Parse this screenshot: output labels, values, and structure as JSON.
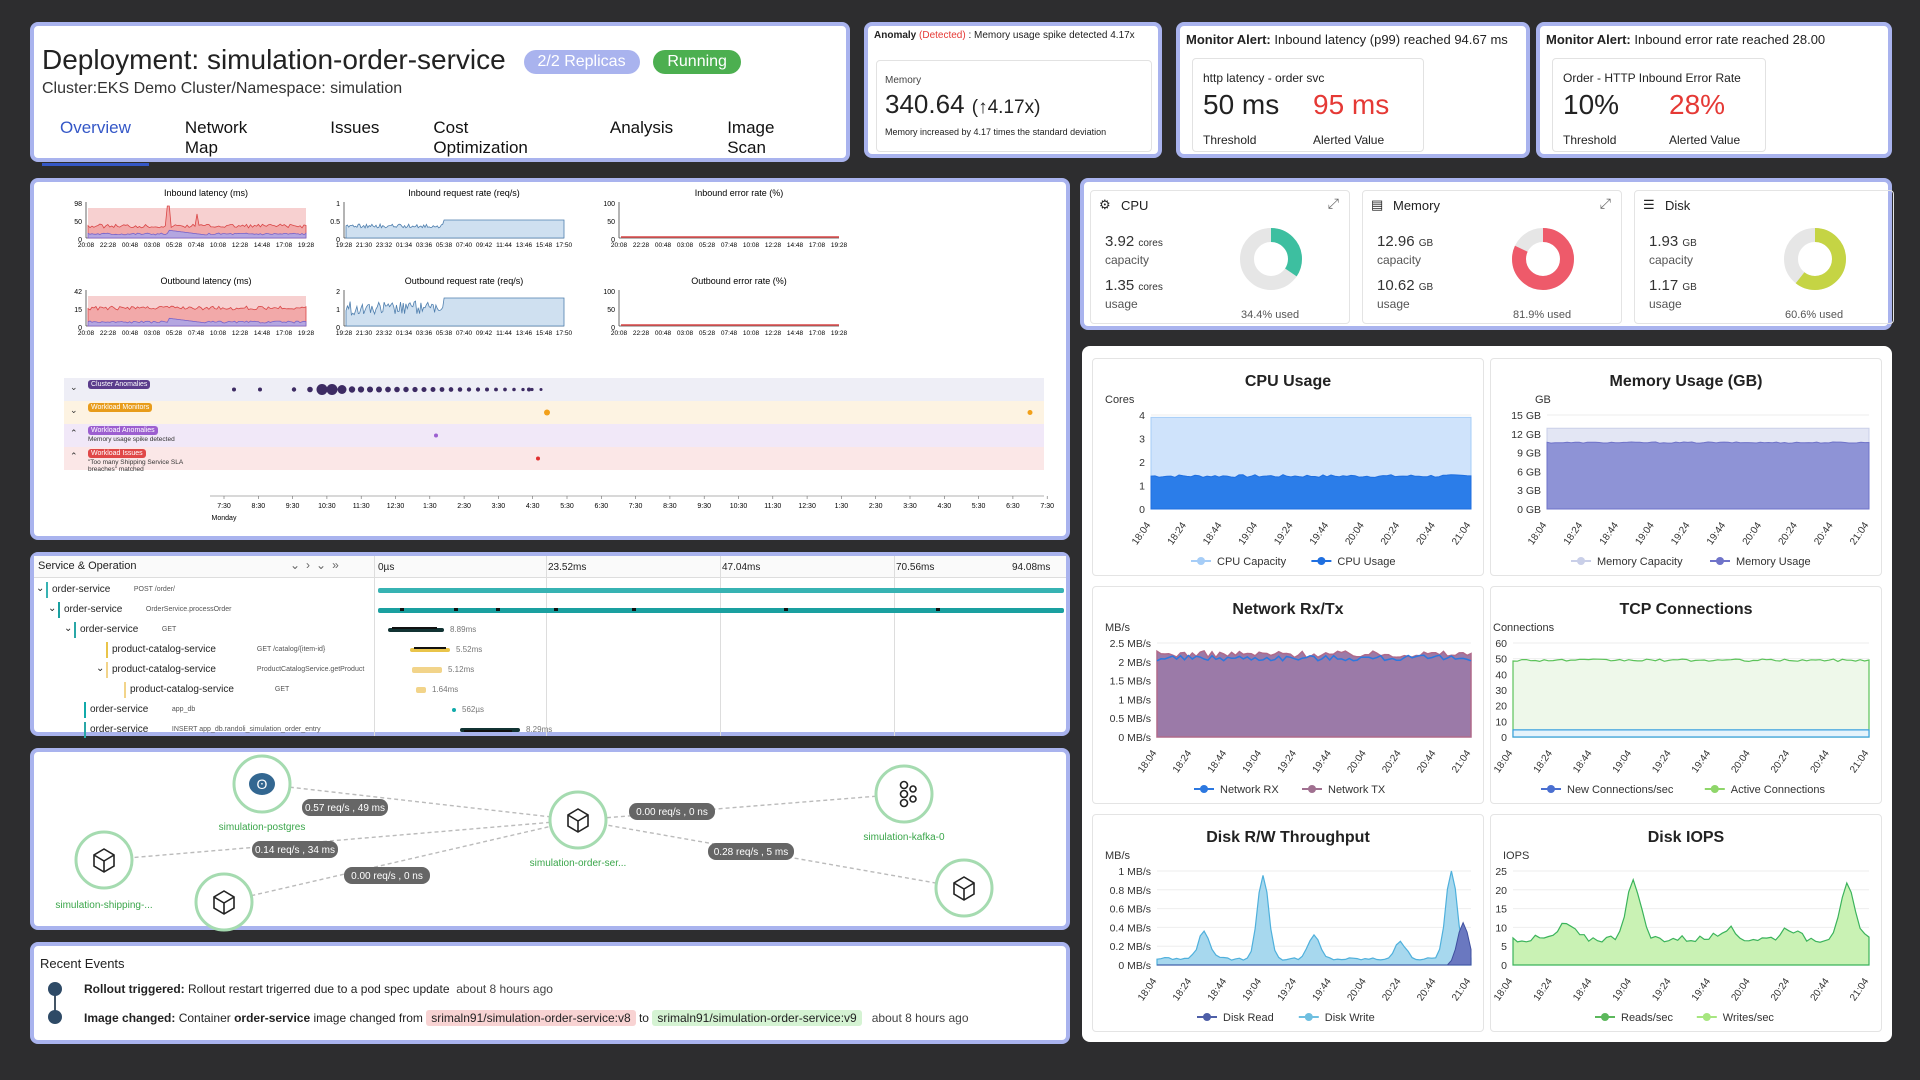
{
  "header": {
    "title": "Deployment: simulation-order-service",
    "replicas": "2/2 Replicas",
    "status": "Running",
    "subtitle": "Cluster:EKS Demo Cluster/Namespace: simulation",
    "tabs": [
      "Overview",
      "Network Map",
      "Issues",
      "Cost Optimization",
      "Analysis",
      "Image Scan"
    ]
  },
  "anomaly": {
    "label": "Anomaly",
    "detected": "(Detected)",
    "msg": ": Memory usage spike detected 4.17x",
    "metric": "Memory",
    "value": "340.64",
    "mult": "(↑4.17x)",
    "note": "Memory increased by 4.17 times the standard deviation"
  },
  "alert1": {
    "label": "Monitor Alert:",
    "msg": "Inbound latency (p99) reached 94.67 ms",
    "name": "http latency - order svc",
    "threshold": "50 ms",
    "alerted": "95 ms",
    "threshold_label": "Threshold",
    "alerted_label": "Alerted Value"
  },
  "alert2": {
    "label": "Monitor Alert:",
    "msg": "Inbound error rate reached 28.00",
    "name": "Order - HTTP Inbound Error Rate",
    "threshold": "10%",
    "alerted": "28%",
    "threshold_label": "Threshold",
    "alerted_label": "Alerted Value"
  },
  "metrics": {
    "titles": [
      "Inbound latency (ms)",
      "Inbound request rate (req/s)",
      "Inbound error rate (%)",
      "Outbound latency (ms)",
      "Outbound request rate (req/s)",
      "Outbound error rate (%)"
    ],
    "xticks": [
      "20:08",
      "22:28",
      "00:48",
      "03:08",
      "05:28",
      "07:48",
      "10:08",
      "12:28",
      "14:48",
      "17:08",
      "19:28"
    ],
    "xticks2": [
      "19:28",
      "21:30",
      "23:32",
      "01:34",
      "03:36",
      "05:38",
      "07:40",
      "09:42",
      "11:44",
      "13:46",
      "15:48",
      "17:50"
    ],
    "y_in_lat": [
      "98",
      "50",
      "0"
    ],
    "y_in_req": [
      "1",
      "0.5",
      "0"
    ],
    "y_err": [
      "100",
      "50",
      "0"
    ],
    "y_out_lat": [
      "42",
      "15",
      "0"
    ],
    "y_out_req": [
      "2",
      "1",
      "0"
    ]
  },
  "timeline": {
    "rows": [
      {
        "label": "Cluster Anomalies",
        "sub": "",
        "color": "#5b3c8c"
      },
      {
        "label": "Workload Monitors",
        "sub": "",
        "color": "#e89c1a"
      },
      {
        "label": "Workload Anomalies",
        "sub": "Memory usage spike detected",
        "color": "#9c5fd0"
      },
      {
        "label": "Workload Issues",
        "sub": "\"Too many Shipping Service SLA breaches\" matched",
        "color": "#e04848"
      }
    ],
    "ticks": [
      "7:30",
      "8:30",
      "9:30",
      "10:30",
      "11:30",
      "12:30",
      "1:30",
      "2:30",
      "3:30",
      "4:30",
      "5:30",
      "6:30",
      "7:30",
      "8:30",
      "9:30",
      "10:30",
      "11:30",
      "12:30",
      "1:30",
      "2:30",
      "3:30",
      "4:30",
      "5:30",
      "6:30",
      "7:30"
    ],
    "day": "Monday"
  },
  "resources": [
    {
      "name": "CPU",
      "cap": "3.92",
      "cap_unit": "cores",
      "cap_label": "capacity",
      "use": "1.35",
      "use_unit": "cores",
      "use_label": "usage",
      "pct": "34.4% used",
      "frac": 0.344,
      "color": "#3dbfa0"
    },
    {
      "name": "Memory",
      "cap": "12.96",
      "cap_unit": "GB",
      "cap_label": "capacity",
      "use": "10.62",
      "use_unit": "GB",
      "use_label": "usage",
      "pct": "81.9% used",
      "frac": 0.819,
      "color": "#ee5a6a"
    },
    {
      "name": "Disk",
      "cap": "1.93",
      "cap_unit": "GB",
      "cap_label": "capacity",
      "use": "1.17",
      "use_unit": "GB",
      "use_label": "usage",
      "pct": "60.6% used",
      "frac": 0.606,
      "color": "#c5d444"
    }
  ],
  "graphs": [
    {
      "title": "CPU Usage",
      "unit": "Cores",
      "yticks": [
        "4",
        "3",
        "2",
        "1",
        "0"
      ],
      "legend": [
        "CPU Capacity",
        "CPU Usage"
      ]
    },
    {
      "title": "Memory Usage (GB)",
      "unit": "GB",
      "yticks": [
        "15 GB",
        "12 GB",
        "9 GB",
        "6 GB",
        "3 GB",
        "0 GB"
      ],
      "legend": [
        "Memory Capacity",
        "Memory Usage"
      ]
    },
    {
      "title": "Network Rx/Tx",
      "unit": "MB/s",
      "yticks": [
        "2.5 MB/s",
        "2 MB/s",
        "1.5 MB/s",
        "1 MB/s",
        "0.5 MB/s",
        "0 MB/s"
      ],
      "legend": [
        "Network RX",
        "Network TX"
      ]
    },
    {
      "title": "TCP Connections",
      "unit": "Connections",
      "yticks": [
        "60",
        "50",
        "40",
        "30",
        "20",
        "10",
        "0"
      ],
      "legend": [
        "New Connections/sec",
        "Active Connections"
      ]
    },
    {
      "title": "Disk R/W Throughput",
      "unit": "MB/s",
      "yticks": [
        "1 MB/s",
        "0.8 MB/s",
        "0.6 MB/s",
        "0.4 MB/s",
        "0.2 MB/s",
        "0 MB/s"
      ],
      "legend": [
        "Disk Read",
        "Disk Write"
      ]
    },
    {
      "title": "Disk IOPS",
      "unit": "IOPS",
      "yticks": [
        "25",
        "20",
        "15",
        "10",
        "5",
        "0"
      ],
      "legend": [
        "Reads/sec",
        "Writes/sec"
      ]
    }
  ],
  "gxticks": [
    "18:04",
    "18:24",
    "18:44",
    "19:04",
    "19:24",
    "19:44",
    "20:04",
    "20:24",
    "20:44",
    "21:04"
  ],
  "trace": {
    "header": "Service & Operation",
    "ticks": [
      "0µs",
      "23.52ms",
      "47.04ms",
      "70.56ms",
      "94.08ms"
    ],
    "rows": [
      {
        "svc": "order-service",
        "op": "POST /order/",
        "dur": ""
      },
      {
        "svc": "order-service",
        "op": "OrderService.processOrder",
        "dur": ""
      },
      {
        "svc": "order-service",
        "op": "GET",
        "dur": "8.89ms"
      },
      {
        "svc": "product-catalog-service",
        "op": "GET /catalog/{item-id}",
        "dur": "5.52ms"
      },
      {
        "svc": "product-catalog-service",
        "op": "ProductCatalogService.getProduct",
        "dur": "5.12ms"
      },
      {
        "svc": "product-catalog-service",
        "op": "GET",
        "dur": "1.64ms"
      },
      {
        "svc": "order-service",
        "op": "app_db",
        "dur": "562µs"
      },
      {
        "svc": "order-service",
        "op": "INSERT app_db.randoli_simulation_order_entry",
        "dur": "8.29ms"
      }
    ]
  },
  "netmap": {
    "nodes": [
      "simulation-postgres",
      "simulation-order-ser...",
      "simulation-kafka-0",
      "simulation-shipping-..."
    ],
    "edges": [
      "0.57 req/s , 49 ms",
      "0.00 req/s , 0 ns",
      "0.14 req/s , 34 ms",
      "0.28 req/s , 5 ms",
      "0.00 req/s , 0 ns"
    ]
  },
  "events": {
    "title": "Recent Events",
    "items": [
      {
        "kind": "Rollout triggered:",
        "text": "Rollout restart trigerred due to a pod spec update",
        "time": "about 8 hours ago"
      },
      {
        "kind": "Image changed:",
        "pre": "Container",
        "bold": "order-service",
        "mid": "image changed from",
        "from": "srimaln91/simulation-order-service:v8",
        "to_word": "to",
        "to": "srimaln91/simulation-order-service:v9",
        "time": "about 8 hours ago"
      }
    ]
  }
}
